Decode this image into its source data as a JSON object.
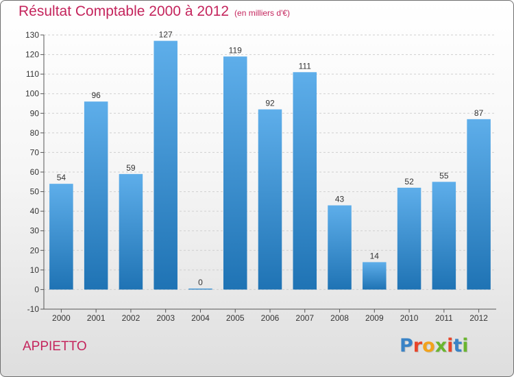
{
  "title": {
    "main": "Résultat Comptable 2000 à 2012",
    "unit": "(en milliers d'€)"
  },
  "commune": "APPIETTO",
  "logo": {
    "text": "Proxiti",
    "colors": [
      "#3a83c6",
      "#e8452a",
      "#f2a31c",
      "#6ab52f",
      "#e8452a",
      "#3a83c6",
      "#6ab52f"
    ]
  },
  "colors": {
    "title": "#c4245c",
    "bar_light": "#5eaeea",
    "bar_dark": "#1f73b4",
    "grid": "#cfcfcf",
    "axis": "#555555"
  },
  "chart_data": {
    "type": "bar",
    "categories": [
      "2000",
      "2001",
      "2002",
      "2003",
      "2004",
      "2005",
      "2006",
      "2007",
      "2008",
      "2009",
      "2010",
      "2011",
      "2012"
    ],
    "values": [
      54,
      96,
      59,
      127,
      0,
      119,
      92,
      111,
      43,
      14,
      52,
      55,
      87
    ],
    "ylim": [
      -10,
      130
    ],
    "yticks": [
      -10,
      0,
      10,
      20,
      30,
      40,
      50,
      60,
      70,
      80,
      90,
      100,
      110,
      120,
      130
    ],
    "grid": true,
    "legend": "none"
  }
}
